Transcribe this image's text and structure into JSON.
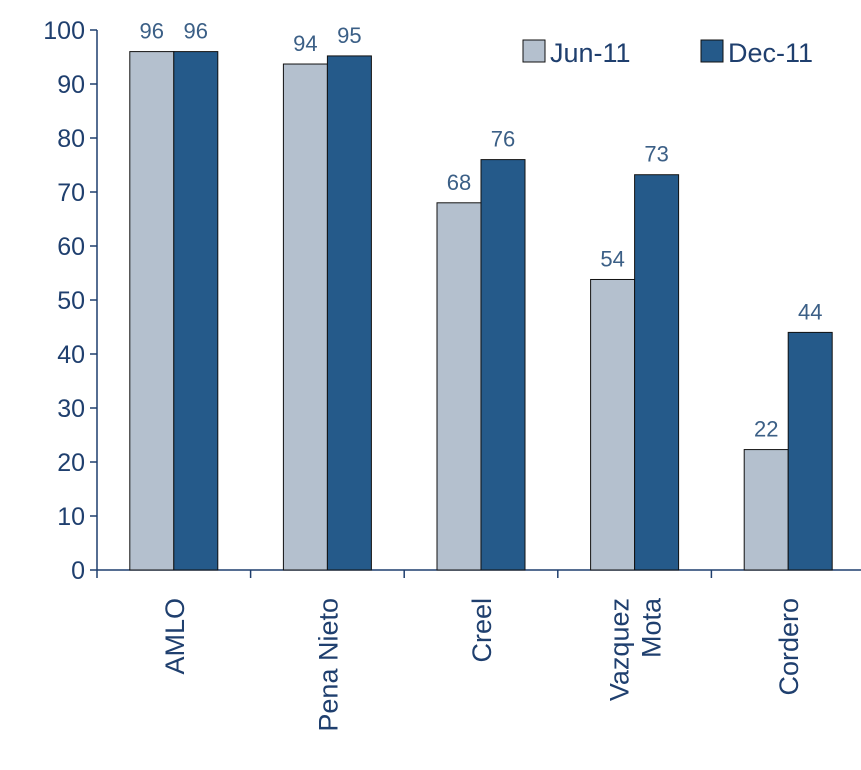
{
  "chart_data": {
    "type": "bar",
    "categories": [
      [
        "AMLO"
      ],
      [
        "Pena Nieto"
      ],
      [
        "Creel"
      ],
      [
        "Vazquez",
        "Mota"
      ],
      [
        "Cordero"
      ]
    ],
    "series": [
      {
        "name": "Jun-11",
        "color": "#b4c0ce",
        "values": [
          96,
          93.7,
          68,
          53.8,
          22.3
        ],
        "labels": [
          "96",
          "94",
          "68",
          "54",
          "22"
        ]
      },
      {
        "name": "Dec-11",
        "color": "#255a8a",
        "values": [
          96,
          95.2,
          76,
          73.2,
          44
        ],
        "labels": [
          "96",
          "95",
          "76",
          "73",
          "44"
        ]
      }
    ],
    "ylim": [
      0,
      100
    ],
    "yticks": [
      "0",
      "10",
      "20",
      "30",
      "40",
      "50",
      "60",
      "70",
      "80",
      "90",
      "100"
    ],
    "legend_position": "top-right",
    "grid": false
  }
}
